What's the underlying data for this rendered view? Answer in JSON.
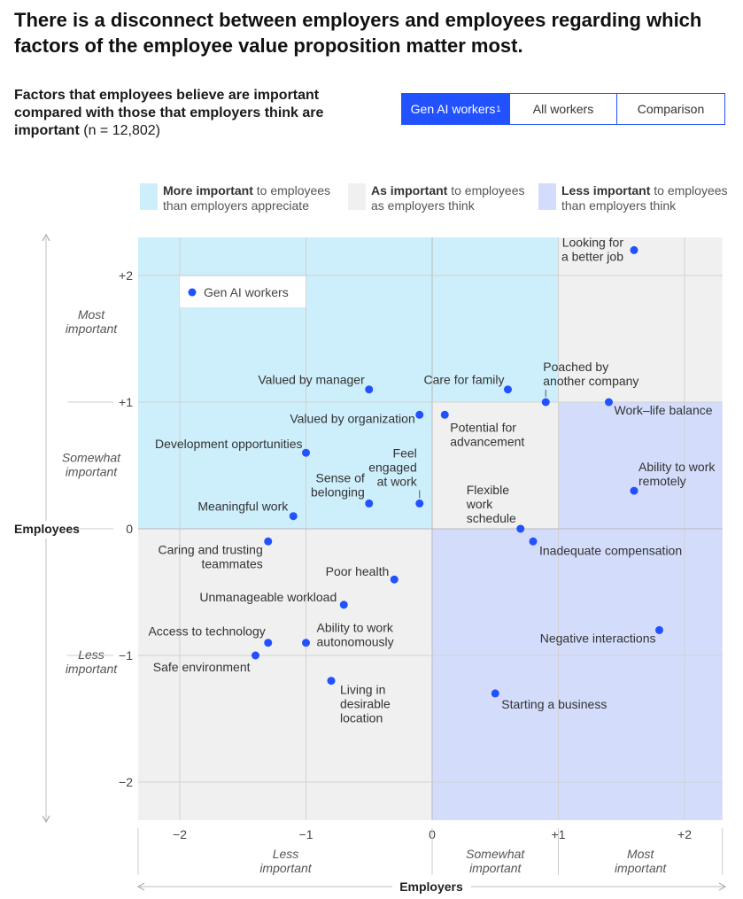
{
  "headline": "There is a disconnect between employers and employees regarding which factors of the employee value proposition matter most.",
  "subtitle": {
    "bold": "Factors that employees believe are important compared with those that employers think are important",
    "n": "(n = 12,802)"
  },
  "tabs": [
    {
      "label": "Gen AI workers",
      "sup": "1",
      "active": true
    },
    {
      "label": "All workers",
      "sup": "",
      "active": false
    },
    {
      "label": "Comparison",
      "sup": "",
      "active": false
    }
  ],
  "legend": [
    {
      "bold": "More important",
      "rest1": " to employees",
      "rest2": "than employers appreciate",
      "color": "#cdeefb"
    },
    {
      "bold": "As important",
      "rest1": " to employees",
      "rest2": "as employers think",
      "color": "#f0f0f0"
    },
    {
      "bold": "Less important",
      "rest1": " to employees",
      "rest2": "than employers think",
      "color": "#d3dcfb"
    }
  ],
  "colors": {
    "point": "#2251ff",
    "more_important": "#cdeefb",
    "as_important": "#f0f0f0",
    "less_important": "#d3dcfb"
  },
  "chart_data": {
    "type": "scatter",
    "series_label": "Gen AI workers",
    "xlabel": "Employers",
    "ylabel": "Employees",
    "xlim": [
      -2.33,
      2.3
    ],
    "ylim": [
      -2.3,
      2.3
    ],
    "x_ticks": [
      {
        "v": -2,
        "label": "−2"
      },
      {
        "v": -1,
        "label": "−1"
      },
      {
        "v": 0,
        "label": "0"
      },
      {
        "v": 1,
        "label": "+1"
      },
      {
        "v": 2,
        "label": "+2"
      }
    ],
    "y_ticks": [
      {
        "v": 2,
        "label": "+2"
      },
      {
        "v": 1,
        "label": "+1"
      },
      {
        "v": 0,
        "label": "0"
      },
      {
        "v": -1,
        "label": "−1"
      },
      {
        "v": -2,
        "label": "−2"
      }
    ],
    "x_bands": [
      {
        "from": -2.33,
        "to": 0,
        "lines": [
          "Less",
          "important"
        ]
      },
      {
        "from": 0,
        "to": 1,
        "lines": [
          "Somewhat",
          "important"
        ]
      },
      {
        "from": 1,
        "to": 2.3,
        "lines": [
          "Most",
          "important"
        ]
      }
    ],
    "y_bands": [
      {
        "from": 1,
        "to": 2.3,
        "lines": [
          "Most",
          "important"
        ]
      },
      {
        "from": 0,
        "to": 1,
        "lines": [
          "Somewhat",
          "important"
        ]
      },
      {
        "from": -2.3,
        "to": 0,
        "lines": [
          "Less",
          "important"
        ]
      }
    ],
    "points": [
      {
        "label": [
          "Looking for",
          "a better job"
        ],
        "x": 1.6,
        "y": 2.2,
        "anchor": "end",
        "dx": -12,
        "dy": -4
      },
      {
        "label": [
          "Valued by manager"
        ],
        "x": -0.5,
        "y": 1.1,
        "anchor": "end",
        "dx": -5,
        "dy": -6
      },
      {
        "label": [
          "Care for family"
        ],
        "x": 0.6,
        "y": 1.1,
        "anchor": "end",
        "dx": -4,
        "dy": -6
      },
      {
        "label": [
          "Poached by",
          "another company"
        ],
        "x": 0.9,
        "y": 1.0,
        "anchor": "start",
        "dx": -3,
        "dy": -35,
        "leader": true
      },
      {
        "label": [
          "Work–life balance"
        ],
        "x": 1.4,
        "y": 1.0,
        "anchor": "start",
        "dx": 6,
        "dy": 14
      },
      {
        "label": [
          "Valued by organization"
        ],
        "x": -0.1,
        "y": 0.9,
        "anchor": "end",
        "dx": -5,
        "dy": 9
      },
      {
        "label": [
          "Potential for",
          "advancement"
        ],
        "x": 0.1,
        "y": 0.9,
        "anchor": "start",
        "dx": 6,
        "dy": 19
      },
      {
        "label": [
          "Development opportunities"
        ],
        "x": -1.0,
        "y": 0.6,
        "anchor": "end",
        "dx": -4,
        "dy": -5
      },
      {
        "label": [
          "Ability to work",
          "remotely"
        ],
        "x": 1.6,
        "y": 0.3,
        "anchor": "start",
        "dx": 5,
        "dy": -22
      },
      {
        "label": [
          "Sense of",
          "belonging"
        ],
        "x": -0.5,
        "y": 0.2,
        "anchor": "end",
        "dx": -5,
        "dy": -24
      },
      {
        "label": [
          "Feel",
          "engaged",
          "at work"
        ],
        "x": -0.1,
        "y": 0.2,
        "anchor": "end",
        "dx": -3,
        "dy": -52,
        "leader": true
      },
      {
        "label": [
          "Meaningful work"
        ],
        "x": -1.1,
        "y": 0.1,
        "anchor": "end",
        "dx": -6,
        "dy": -6
      },
      {
        "label": [
          "Flexible",
          "work",
          "schedule"
        ],
        "x": 0.7,
        "y": 0.0,
        "anchor": "start",
        "dx": -61,
        "dy": -39
      },
      {
        "label": [
          "Inadequate compensation"
        ],
        "x": 0.8,
        "y": -0.1,
        "anchor": "start",
        "dx": 7,
        "dy": 15
      },
      {
        "label": [
          "Caring and trusting",
          "teammates"
        ],
        "x": -1.3,
        "y": -0.1,
        "anchor": "end",
        "dx": -6,
        "dy": 14
      },
      {
        "label": [
          "Poor health"
        ],
        "x": -0.3,
        "y": -0.4,
        "anchor": "end",
        "dx": -6,
        "dy": -4
      },
      {
        "label": [
          "Unmanageable workload"
        ],
        "x": -0.7,
        "y": -0.6,
        "anchor": "end",
        "dx": -8,
        "dy": -4
      },
      {
        "label": [
          "Access to technology"
        ],
        "x": -1.3,
        "y": -0.9,
        "anchor": "end",
        "dx": -3,
        "dy": -8
      },
      {
        "label": [
          "Ability to work",
          "autonomously"
        ],
        "x": -1.0,
        "y": -0.9,
        "anchor": "start",
        "dx": 12,
        "dy": -12
      },
      {
        "label": [
          "Safe environment"
        ],
        "x": -1.4,
        "y": -1.0,
        "anchor": "end",
        "dx": -6,
        "dy": 18
      },
      {
        "label": [
          "Living in",
          "desirable",
          "location"
        ],
        "x": -0.8,
        "y": -1.2,
        "anchor": "start",
        "dx": 10,
        "dy": 15
      },
      {
        "label": [
          "Negative interactions"
        ],
        "x": 1.8,
        "y": -0.8,
        "anchor": "end",
        "dx": -4,
        "dy": 14
      },
      {
        "label": [
          "Starting a business"
        ],
        "x": 0.5,
        "y": -1.3,
        "anchor": "start",
        "dx": 7,
        "dy": 17
      }
    ]
  }
}
